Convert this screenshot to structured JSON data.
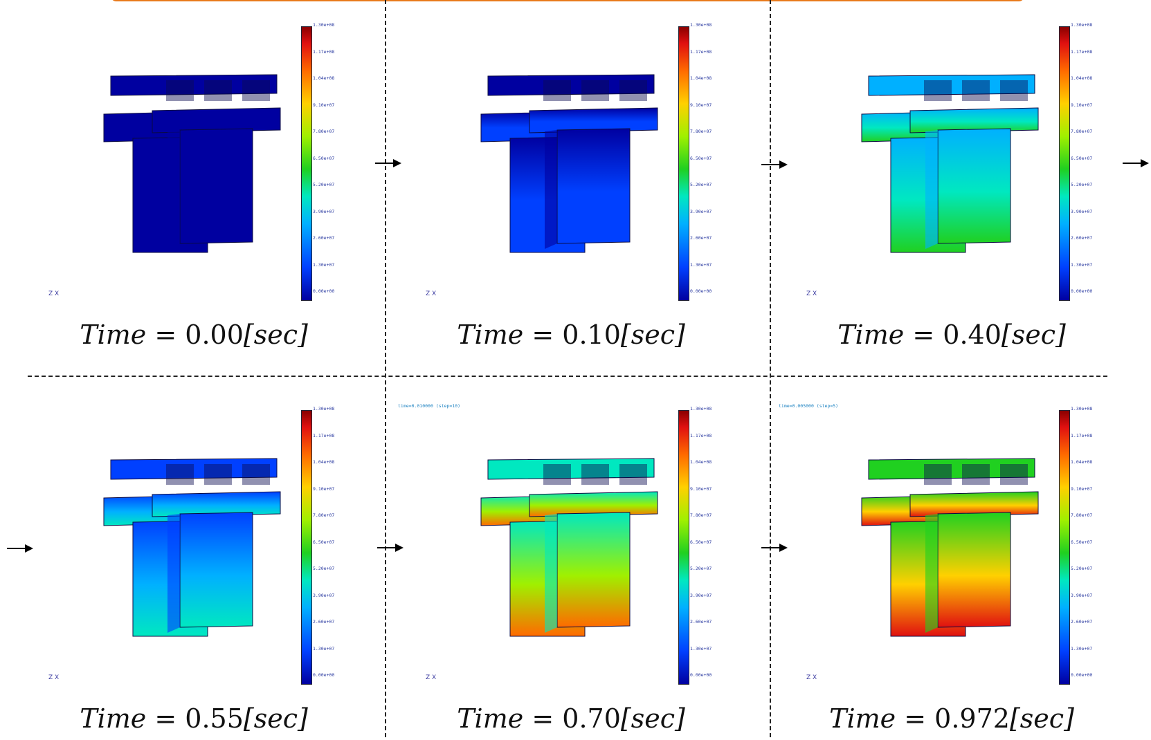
{
  "colorbar": {
    "tick_labels": [
      "1.30e+08",
      "1.17e+08",
      "1.04e+08",
      "9.10e+07",
      "7.80e+07",
      "6.50e+07",
      "5.20e+07",
      "3.90e+07",
      "2.60e+07",
      "1.30e+07",
      "0.00e+00"
    ],
    "gradient_colors": [
      "#8a0000",
      "#e01010",
      "#ff6a00",
      "#ffd000",
      "#a0f000",
      "#20d020",
      "#00e8c0",
      "#00b0ff",
      "#0040ff",
      "#0000a0"
    ]
  },
  "axis_triad_label": "Z X",
  "panels": [
    {
      "caption_var": "Time",
      "caption_eq": "=",
      "caption_value": "0.00",
      "caption_unit": "[sec]",
      "step_text": "",
      "stress_level": 0.0
    },
    {
      "caption_var": "Time",
      "caption_eq": "=",
      "caption_value": "0.10",
      "caption_unit": "[sec]",
      "step_text": "",
      "stress_level": 0.12
    },
    {
      "caption_var": "Time",
      "caption_eq": "=",
      "caption_value": "0.40",
      "caption_unit": "[sec]",
      "step_text": "",
      "stress_level": 0.42
    },
    {
      "caption_var": "Time",
      "caption_eq": "=",
      "caption_value": "0.55",
      "caption_unit": "[sec]",
      "step_text": "",
      "stress_level": 0.3
    },
    {
      "caption_var": "Time",
      "caption_eq": "=",
      "caption_value": "0.70",
      "caption_unit": "[sec]",
      "step_text": "time=0.010000 (step=10)",
      "stress_level": 0.75
    },
    {
      "caption_var": "Time",
      "caption_eq": "=",
      "caption_value": "0.972",
      "caption_unit": "[sec]",
      "step_text": "time=0.005000 (step=5)",
      "stress_level": 0.9
    }
  ]
}
